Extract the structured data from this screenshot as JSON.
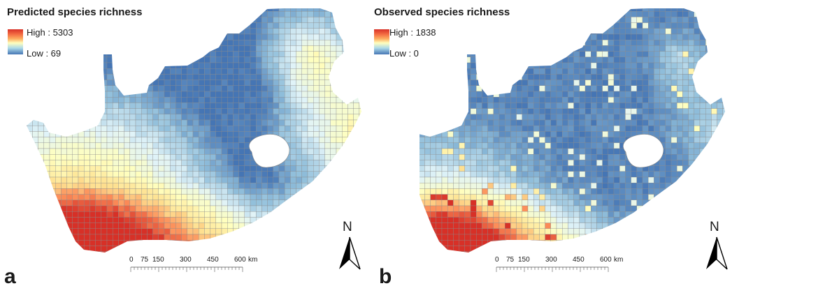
{
  "panels": [
    {
      "letter": "a",
      "title": "Predicted species richness",
      "legend": {
        "high": "High : 5303",
        "low": "Low : 69"
      },
      "north": "N",
      "scale": {
        "ticks": [
          "0",
          "75",
          "150",
          "300",
          "450",
          "600"
        ],
        "unit": "km"
      }
    },
    {
      "letter": "b",
      "title": "Observed species richness",
      "legend": {
        "high": "High : 1838",
        "low": "Low : 0"
      },
      "north": "N",
      "scale": {
        "ticks": [
          "0",
          "75",
          "150",
          "300",
          "450",
          "600"
        ],
        "unit": "km"
      }
    }
  ],
  "colors": {
    "high": "#d73027",
    "mid": "#ffffbf",
    "low": "#4575b4",
    "grid_line": "#8a8a8a"
  }
}
